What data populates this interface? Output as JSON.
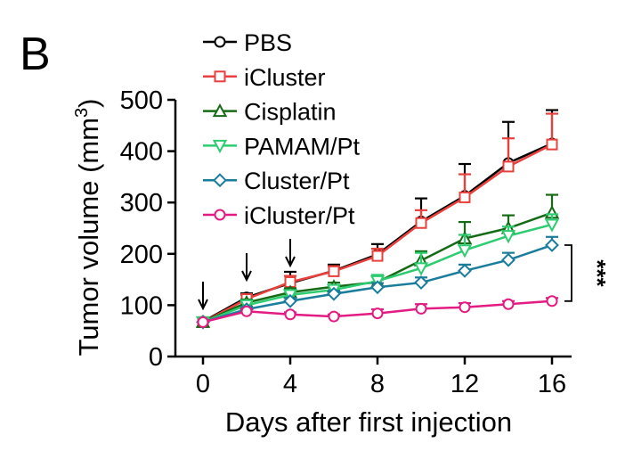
{
  "panel_label": "B",
  "chart_data": {
    "type": "line",
    "xlabel": "Days after first injection",
    "ylabel": "Tumor volume (mm",
    "ylabel_superscript": "3",
    "ylabel_close": ")",
    "xlim": [
      0,
      16
    ],
    "ylim": [
      0,
      500
    ],
    "xticks": [
      0,
      4,
      8,
      12,
      16
    ],
    "yticks": [
      0,
      100,
      200,
      300,
      400,
      500
    ],
    "grid": false,
    "legend_position": "top-left",
    "injection_days": [
      0,
      2,
      4
    ],
    "significance": {
      "label": "***",
      "between": [
        "Cluster/Pt",
        "iCluster/Pt"
      ],
      "at_x": 16
    },
    "series": [
      {
        "name": "PBS",
        "color": "#000000",
        "marker": "circle",
        "x": [
          0,
          2,
          4,
          6,
          8,
          10,
          12,
          14,
          16
        ],
        "y": [
          68,
          115,
          143,
          167,
          199,
          263,
          313,
          377,
          415
        ],
        "error": [
          0,
          8,
          22,
          12,
          20,
          45,
          62,
          80,
          65
        ]
      },
      {
        "name": "iCluster",
        "color": "#e8403d",
        "marker": "square",
        "x": [
          0,
          2,
          4,
          6,
          8,
          10,
          12,
          14,
          16
        ],
        "y": [
          67,
          112,
          145,
          166,
          196,
          260,
          310,
          370,
          413
        ],
        "error": [
          0,
          8,
          12,
          10,
          14,
          25,
          45,
          55,
          60
        ]
      },
      {
        "name": "Cisplatin",
        "color": "#156b15",
        "marker": "triangle-up",
        "x": [
          0,
          2,
          4,
          6,
          8,
          10,
          12,
          14,
          16
        ],
        "y": [
          67,
          105,
          125,
          136,
          145,
          187,
          230,
          250,
          280
        ],
        "error": [
          0,
          6,
          8,
          8,
          12,
          18,
          32,
          25,
          35
        ]
      },
      {
        "name": "PAMAM/Pt",
        "color": "#2ecc71",
        "marker": "triangle-down",
        "x": [
          0,
          2,
          4,
          6,
          8,
          10,
          12,
          14,
          16
        ],
        "y": [
          67,
          100,
          120,
          130,
          147,
          172,
          207,
          235,
          257
        ],
        "error": [
          0,
          6,
          8,
          8,
          12,
          30,
          30,
          18,
          20
        ]
      },
      {
        "name": "Cluster/Pt",
        "color": "#1a7d9c",
        "marker": "diamond",
        "x": [
          0,
          2,
          4,
          6,
          8,
          10,
          12,
          14,
          16
        ],
        "y": [
          67,
          92,
          108,
          122,
          135,
          144,
          167,
          188,
          217
        ],
        "error": [
          0,
          5,
          6,
          6,
          8,
          10,
          12,
          14,
          16
        ]
      },
      {
        "name": "iCluster/Pt",
        "color": "#e31b82",
        "marker": "circle",
        "x": [
          0,
          2,
          4,
          6,
          8,
          10,
          12,
          14,
          16
        ],
        "y": [
          67,
          88,
          82,
          78,
          84,
          93,
          96,
          102,
          108
        ],
        "error": [
          0,
          5,
          4,
          4,
          8,
          9,
          8,
          6,
          6
        ]
      }
    ]
  }
}
